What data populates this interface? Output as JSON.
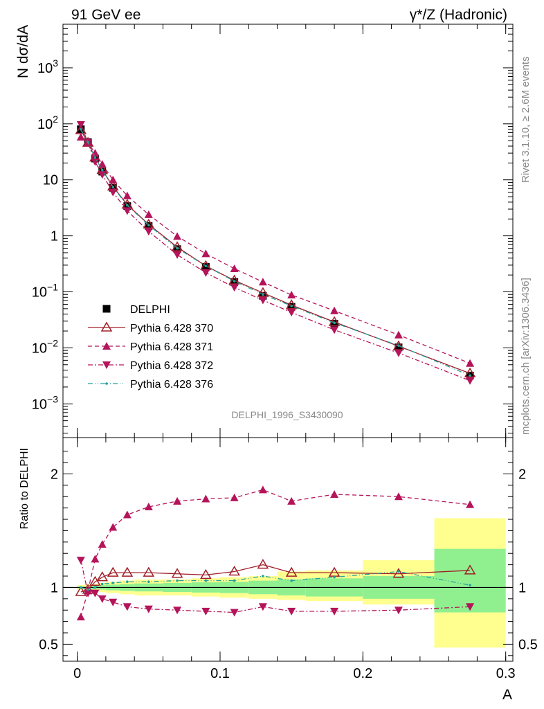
{
  "header": {
    "left": "91 GeV ee",
    "right": "γ*/Z (Hadronic)"
  },
  "side_text": {
    "rivet": "Rivet 3.1.10, ≥ 2.6M events",
    "mcplots": "mcplots.cern.ch [arXiv:1306.3436]"
  },
  "analysis_label": "DELPHI_1996_S3430090",
  "colors": {
    "data": "#000000",
    "p370": "#a01e28",
    "p371": "#b4145a",
    "p372": "#b4145a",
    "p376": "#20a0a0",
    "band_stat": "#90f090",
    "band_total": "#ffff90"
  },
  "chart_data": [
    {
      "type": "scatter",
      "panel": "main",
      "ylabel": "N dσ/dA",
      "xlim": [
        -0.01,
        0.305
      ],
      "ylim": [
        0.00025,
        6000
      ],
      "yscale": "log",
      "ytick_labels": [
        "10^-3",
        "10^-2",
        "10^-1",
        "1",
        "10",
        "10^2",
        "10^3"
      ],
      "legend_position": "bottom-left",
      "x": [
        0.0025,
        0.0075,
        0.0125,
        0.0175,
        0.025,
        0.035,
        0.05,
        0.07,
        0.09,
        0.11,
        0.13,
        0.15,
        0.18,
        0.225,
        0.275
      ],
      "series": [
        {
          "name": "DELPHI",
          "style": "data",
          "values": [
            80,
            47,
            24,
            14,
            7.2,
            3.4,
            1.5,
            0.58,
            0.28,
            0.15,
            0.085,
            0.054,
            0.027,
            0.0102,
            0.0032
          ]
        },
        {
          "name": "Pythia 6.428 370",
          "style": "p370",
          "values": [
            77,
            46,
            25,
            15,
            7.6,
            3.6,
            1.6,
            0.63,
            0.29,
            0.16,
            0.096,
            0.058,
            0.029,
            0.0107,
            0.0035
          ]
        },
        {
          "name": "Pythia 6.428 371",
          "style": "p371",
          "values": [
            58,
            46,
            30,
            19,
            10,
            5.2,
            2.4,
            0.98,
            0.48,
            0.26,
            0.15,
            0.088,
            0.046,
            0.017,
            0.0053
          ]
        },
        {
          "name": "Pythia 6.428 372",
          "style": "p372",
          "values": [
            97,
            46,
            21,
            12.4,
            6.0,
            2.8,
            1.2,
            0.46,
            0.22,
            0.12,
            0.071,
            0.043,
            0.021,
            0.0081,
            0.0026
          ]
        },
        {
          "name": "Pythia 6.428 376",
          "style": "p376",
          "values": [
            80,
            47,
            25,
            15,
            7.4,
            3.5,
            1.55,
            0.6,
            0.29,
            0.155,
            0.09,
            0.056,
            0.028,
            0.011,
            0.0032
          ]
        }
      ]
    },
    {
      "type": "scatter",
      "panel": "ratio",
      "xlabel": "A",
      "ylabel": "Ratio to DELPHI",
      "xlim": [
        -0.01,
        0.305
      ],
      "ylim": [
        0.35,
        2.32
      ],
      "yticks": [
        0.5,
        1,
        2
      ],
      "ytick_labels": [
        "0.5",
        "1",
        "2"
      ],
      "xticks": [
        0,
        0.1,
        0.2,
        0.3
      ],
      "xtick_labels": [
        "0",
        "0.1",
        "0.2",
        "0.3"
      ],
      "bin_edges": [
        0,
        0.005,
        0.01,
        0.015,
        0.02,
        0.03,
        0.04,
        0.06,
        0.08,
        0.1,
        0.12,
        0.14,
        0.16,
        0.2,
        0.25,
        0.3
      ],
      "band_stat": [
        [
          0.99,
          1.01
        ],
        [
          0.99,
          1.01
        ],
        [
          0.985,
          1.015
        ],
        [
          0.98,
          1.02
        ],
        [
          0.975,
          1.025
        ],
        [
          0.97,
          1.03
        ],
        [
          0.965,
          1.035
        ],
        [
          0.96,
          1.04
        ],
        [
          0.955,
          1.045
        ],
        [
          0.95,
          1.05
        ],
        [
          0.94,
          1.06
        ],
        [
          0.93,
          1.07
        ],
        [
          0.92,
          1.08
        ],
        [
          0.9,
          1.1
        ],
        [
          0.78,
          1.34
        ]
      ],
      "band_total": [
        [
          0.98,
          1.02
        ],
        [
          0.97,
          1.03
        ],
        [
          0.97,
          1.03
        ],
        [
          0.96,
          1.04
        ],
        [
          0.95,
          1.05
        ],
        [
          0.94,
          1.06
        ],
        [
          0.93,
          1.07
        ],
        [
          0.93,
          1.07
        ],
        [
          0.92,
          1.08
        ],
        [
          0.91,
          1.09
        ],
        [
          0.9,
          1.1
        ],
        [
          0.89,
          1.14
        ],
        [
          0.88,
          1.15
        ],
        [
          0.85,
          1.24
        ],
        [
          0.47,
          1.61
        ]
      ],
      "x": [
        0.0025,
        0.0075,
        0.0125,
        0.0175,
        0.025,
        0.035,
        0.05,
        0.07,
        0.09,
        0.11,
        0.13,
        0.15,
        0.18,
        0.225,
        0.275
      ],
      "series": [
        {
          "name": "Pythia 6.428 370",
          "style": "p370",
          "values": [
            0.96,
            0.98,
            1.05,
            1.09,
            1.13,
            1.13,
            1.13,
            1.12,
            1.11,
            1.14,
            1.2,
            1.13,
            1.13,
            1.12,
            1.15
          ]
        },
        {
          "name": "Pythia 6.428 371",
          "style": "p371",
          "values": [
            0.74,
            0.97,
            1.25,
            1.38,
            1.53,
            1.64,
            1.71,
            1.76,
            1.78,
            1.79,
            1.86,
            1.76,
            1.82,
            1.8,
            1.73
          ]
        },
        {
          "name": "Pythia 6.428 372",
          "style": "p372",
          "values": [
            1.24,
            0.95,
            0.95,
            0.9,
            0.87,
            0.83,
            0.81,
            0.8,
            0.79,
            0.78,
            0.83,
            0.79,
            0.79,
            0.8,
            0.83
          ]
        },
        {
          "name": "Pythia 6.428 376",
          "style": "p376",
          "values": [
            1.0,
            0.98,
            1.0,
            1.03,
            1.04,
            1.05,
            1.05,
            1.06,
            1.06,
            1.06,
            1.1,
            1.06,
            1.09,
            1.14,
            1.02
          ]
        }
      ]
    }
  ]
}
